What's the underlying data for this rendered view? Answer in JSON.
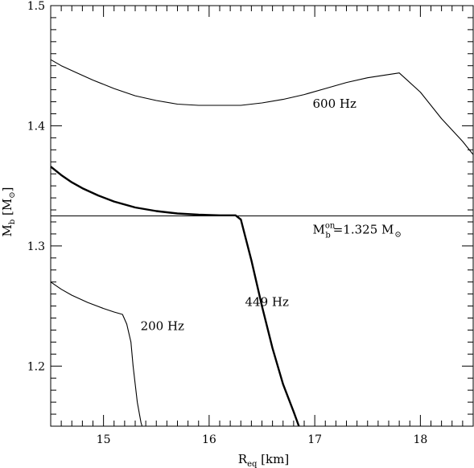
{
  "chart_data": {
    "type": "line",
    "title": "",
    "xlabel": {
      "main": "R",
      "sub": "eq",
      "unit": "[km]"
    },
    "ylabel": {
      "main": "M",
      "sub": "b",
      "unit": "[M",
      "sun_symbol": "⊙",
      "close": "]"
    },
    "xlim": [
      14.5,
      18.5
    ],
    "ylim": [
      1.15,
      1.5
    ],
    "xticks": [
      15,
      16,
      17,
      18
    ],
    "xtick_labels": [
      "15",
      "16",
      "17",
      "18"
    ],
    "yticks": [
      1.2,
      1.3,
      1.4,
      1.5
    ],
    "ytick_labels": [
      "1.2",
      "1.3",
      "1.4",
      "1.5"
    ],
    "grid": false,
    "legend": "none",
    "hline": {
      "y": 1.325,
      "label": {
        "M": "M",
        "sup": "on",
        "sub": "b",
        "eq": "=1.325 M",
        "sun_symbol": "⊙"
      }
    },
    "series": [
      {
        "name": "600 Hz",
        "label_x": 16.98,
        "label_y": 1.415,
        "weight": "thin",
        "x": [
          14.5,
          14.6,
          14.75,
          14.9,
          15.1,
          15.3,
          15.5,
          15.7,
          15.9,
          16.1,
          16.3,
          16.5,
          16.7,
          16.9,
          17.1,
          17.3,
          17.5,
          17.65,
          17.8,
          18.0,
          18.2,
          18.4,
          18.5
        ],
        "y": [
          1.455,
          1.45,
          1.444,
          1.438,
          1.431,
          1.425,
          1.421,
          1.418,
          1.417,
          1.417,
          1.417,
          1.419,
          1.422,
          1.426,
          1.431,
          1.436,
          1.44,
          1.442,
          1.444,
          1.428,
          1.406,
          1.387,
          1.376
        ]
      },
      {
        "name": "449 Hz",
        "label_x": 16.34,
        "label_y": 1.25,
        "weight": "thick",
        "x": [
          14.5,
          14.6,
          14.7,
          14.8,
          14.95,
          15.1,
          15.3,
          15.5,
          15.7,
          15.9,
          16.1,
          16.2,
          16.25,
          16.3,
          16.4,
          16.5,
          16.6,
          16.7,
          16.8,
          16.85
        ],
        "y": [
          1.366,
          1.359,
          1.353,
          1.348,
          1.342,
          1.337,
          1.332,
          1.329,
          1.327,
          1.326,
          1.3255,
          1.3255,
          1.3255,
          1.322,
          1.288,
          1.25,
          1.215,
          1.185,
          1.162,
          1.15
        ]
      },
      {
        "name": "200 Hz",
        "label_x": 15.35,
        "label_y": 1.23,
        "weight": "thin",
        "x": [
          14.5,
          14.6,
          14.7,
          14.85,
          15.0,
          15.1,
          15.18,
          15.22,
          15.26,
          15.28,
          15.3,
          15.32,
          15.34,
          15.355,
          15.365
        ],
        "y": [
          1.27,
          1.264,
          1.259,
          1.253,
          1.248,
          1.245,
          1.243,
          1.235,
          1.22,
          1.2,
          1.185,
          1.17,
          1.16,
          1.153,
          1.15
        ]
      }
    ]
  }
}
